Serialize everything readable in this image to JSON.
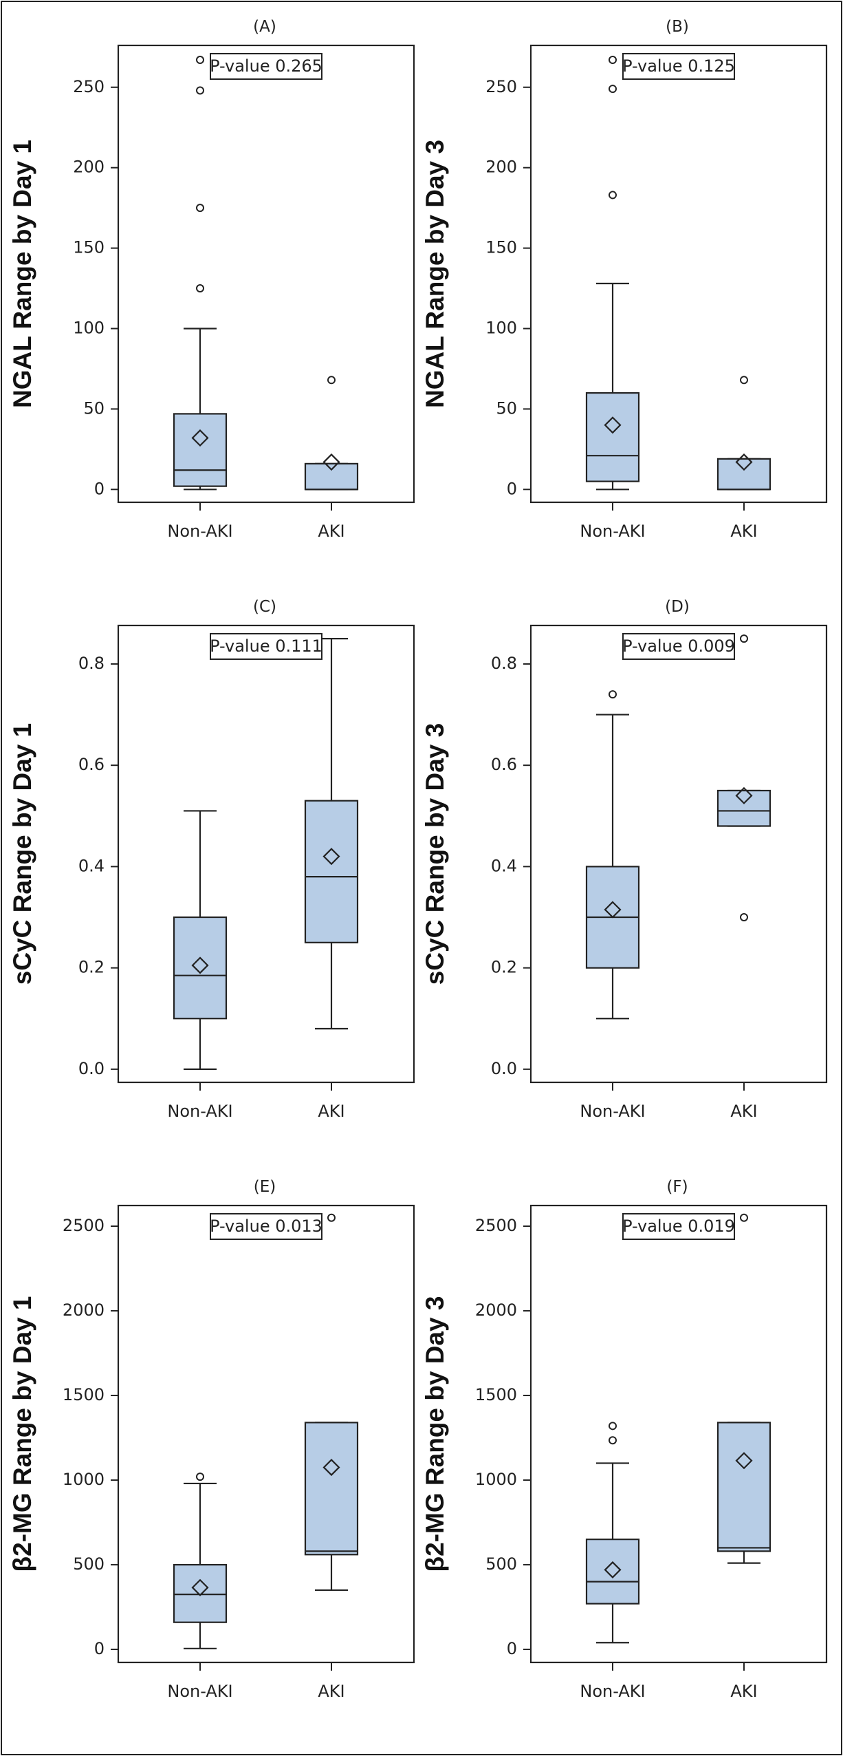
{
  "chart_data": [
    {
      "type": "box",
      "panel": "(A)",
      "ylabel": "NGAL Range by Day 1",
      "p_value_label": "P-value 0.265",
      "categories": [
        "Non-AKI",
        "AKI"
      ],
      "yticks": [
        0,
        50,
        100,
        150,
        200,
        250
      ],
      "ylim": [
        -8,
        276
      ],
      "boxes": [
        {
          "min": 0,
          "q1": 2,
          "median": 12,
          "q3": 47,
          "max": 100,
          "mean": 32,
          "outliers": [
            125,
            175,
            248,
            267
          ]
        },
        {
          "min": 0,
          "q1": 0,
          "median": 0,
          "q3": 16,
          "max": 16,
          "mean": 17,
          "outliers": [
            68
          ]
        }
      ]
    },
    {
      "type": "box",
      "panel": "(B)",
      "ylabel": "NGAL Range by Day 3",
      "p_value_label": "P-value 0.125",
      "categories": [
        "Non-AKI",
        "AKI"
      ],
      "yticks": [
        0,
        50,
        100,
        150,
        200,
        250
      ],
      "ylim": [
        -8,
        276
      ],
      "boxes": [
        {
          "min": 0,
          "q1": 5,
          "median": 21,
          "q3": 60,
          "max": 128,
          "mean": 40,
          "outliers": [
            183,
            249,
            267
          ]
        },
        {
          "min": 0,
          "q1": 0,
          "median": 0,
          "q3": 19,
          "max": 19,
          "mean": 17,
          "outliers": [
            68
          ]
        }
      ]
    },
    {
      "type": "box",
      "panel": "(C)",
      "ylabel": "sCyC Range by Day 1",
      "p_value_label": "P-value 0.111",
      "categories": [
        "Non-AKI",
        "AKI"
      ],
      "yticks": [
        0.0,
        0.2,
        0.4,
        0.6,
        0.8
      ],
      "tick_decimals": 1,
      "ylim": [
        -0.026,
        0.876
      ],
      "boxes": [
        {
          "min": 0.0,
          "q1": 0.1,
          "median": 0.185,
          "q3": 0.3,
          "max": 0.51,
          "mean": 0.205,
          "outliers": []
        },
        {
          "min": 0.08,
          "q1": 0.25,
          "median": 0.38,
          "q3": 0.53,
          "max": 0.85,
          "mean": 0.42,
          "outliers": []
        }
      ]
    },
    {
      "type": "box",
      "panel": "(D)",
      "ylabel": "sCyC Range by Day 3",
      "p_value_label": "P-value 0.009",
      "categories": [
        "Non-AKI",
        "AKI"
      ],
      "yticks": [
        0.0,
        0.2,
        0.4,
        0.6,
        0.8
      ],
      "tick_decimals": 1,
      "ylim": [
        -0.026,
        0.876
      ],
      "boxes": [
        {
          "min": 0.1,
          "q1": 0.2,
          "median": 0.3,
          "q3": 0.4,
          "max": 0.7,
          "mean": 0.315,
          "outliers": [
            0.74
          ]
        },
        {
          "min": 0.48,
          "q1": 0.48,
          "median": 0.51,
          "q3": 0.55,
          "max": 0.55,
          "mean": 0.54,
          "outliers": [
            0.3,
            0.85
          ]
        }
      ]
    },
    {
      "type": "box",
      "panel": "(E)",
      "ylabel": "β2-MG Range by Day 1",
      "p_value_label": "P-value 0.013",
      "categories": [
        "Non-AKI",
        "AKI"
      ],
      "yticks": [
        0,
        500,
        1000,
        1500,
        2000,
        2500
      ],
      "ylim": [
        -77,
        2622
      ],
      "boxes": [
        {
          "min": 5,
          "q1": 160,
          "median": 325,
          "q3": 500,
          "max": 980,
          "mean": 365,
          "outliers": [
            1020
          ]
        },
        {
          "min": 350,
          "q1": 560,
          "median": 580,
          "q3": 1340,
          "max": 1340,
          "mean": 1075,
          "outliers": [
            2550
          ]
        }
      ]
    },
    {
      "type": "box",
      "panel": "(F)",
      "ylabel": "β2-MG Range by Day 3",
      "p_value_label": "P-value 0.019",
      "categories": [
        "Non-AKI",
        "AKI"
      ],
      "yticks": [
        0,
        500,
        1000,
        1500,
        2000,
        2500
      ],
      "ylim": [
        -77,
        2622
      ],
      "boxes": [
        {
          "min": 40,
          "q1": 270,
          "median": 400,
          "q3": 650,
          "max": 1100,
          "mean": 470,
          "outliers": [
            1235,
            1320
          ]
        },
        {
          "min": 510,
          "q1": 580,
          "median": 600,
          "q3": 1340,
          "max": 1340,
          "mean": 1115,
          "outliers": [
            2550
          ]
        }
      ]
    }
  ],
  "colors": {
    "box_fill": "#b7cde6",
    "stroke": "#222222"
  }
}
